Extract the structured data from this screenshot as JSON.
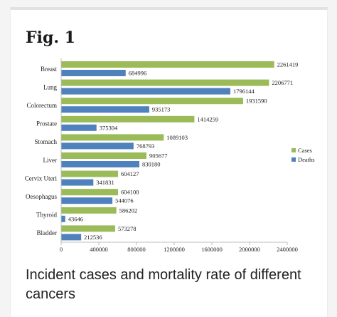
{
  "figure_label": "Fig. 1",
  "caption": "Incident cases and mortality rate of different cancers",
  "colors": {
    "cases": "#9bbb59",
    "deaths": "#4f81bd",
    "axis": "#bfbfbf"
  },
  "chart_data": {
    "type": "bar",
    "orientation": "horizontal",
    "title": "",
    "xlabel": "",
    "ylabel": "",
    "xlim": [
      0,
      2400000
    ],
    "x_ticks": [
      "0",
      "400000",
      "800000",
      "1200000",
      "1600000",
      "2000000",
      "2400000"
    ],
    "categories": [
      "Breast",
      "Lung",
      "Colorectum",
      "Prostate",
      "Stomach",
      "Liver",
      "Cervix Uteri",
      "Oesophagus",
      "Thyroid",
      "Bladder"
    ],
    "series": [
      {
        "name": "Cases",
        "values": [
          2261419,
          2206771,
          1931590,
          1414259,
          1089103,
          905677,
          604127,
          604100,
          586202,
          573278
        ]
      },
      {
        "name": "Deaths",
        "values": [
          684996,
          1796144,
          935173,
          375304,
          768793,
          830180,
          341831,
          544076,
          43646,
          212536
        ]
      }
    ],
    "grid": false,
    "legend": "right"
  }
}
